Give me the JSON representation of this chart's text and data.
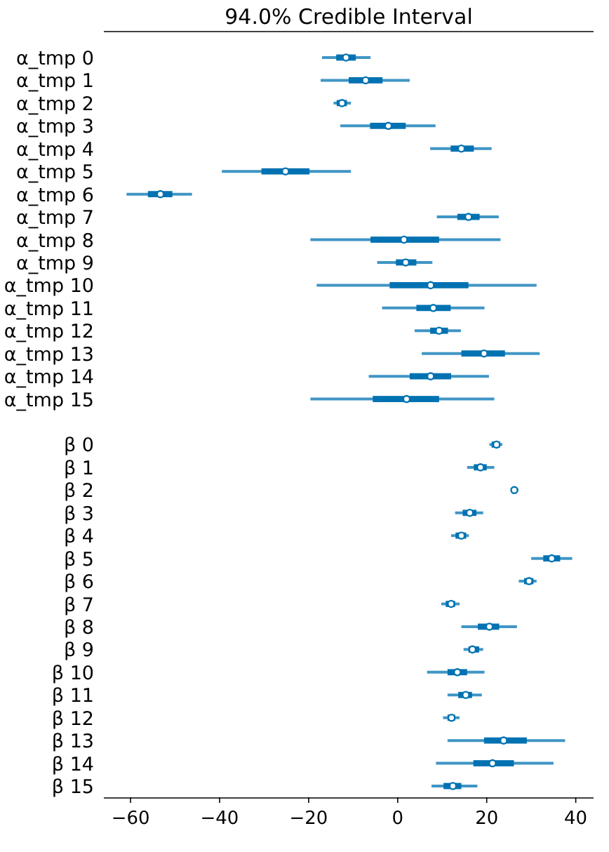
{
  "chart_data": {
    "type": "box",
    "orientation": "horizontal",
    "title": "94.0% Credible Interval",
    "marker": "circle",
    "color": "#0072b2",
    "categories": [
      "α_tmp 0",
      "α_tmp 1",
      "α_tmp 2",
      "α_tmp 3",
      "α_tmp 4",
      "α_tmp 5",
      "α_tmp 6",
      "α_tmp 7",
      "α_tmp 8",
      "α_tmp 9",
      "α_tmp 10",
      "α_tmp 11",
      "α_tmp 12",
      "α_tmp 13",
      "α_tmp 14",
      "α_tmp 15",
      null,
      "β 0",
      "β 1",
      "β 2",
      "β 3",
      "β 4",
      "β 5",
      "β 6",
      "β 7",
      "β 8",
      "β 9",
      "β 10",
      "β 11",
      "β 12",
      "β 13",
      "β 14",
      "β 15"
    ],
    "boxes": [
      {
        "low": -17.0,
        "q1": -13.8,
        "median": -11.6,
        "q3": -9.4,
        "high": -6.1
      },
      {
        "low": -17.3,
        "q1": -11.0,
        "median": -7.2,
        "q3": -3.4,
        "high": 2.7
      },
      {
        "low": -14.4,
        "q1": -13.7,
        "median": -12.5,
        "q3": -11.4,
        "high": -10.5
      },
      {
        "low": -12.9,
        "q1": -6.2,
        "median": -2.1,
        "q3": 1.8,
        "high": 8.5
      },
      {
        "low": 7.3,
        "q1": 11.9,
        "median": 14.3,
        "q3": 17.1,
        "high": 21.1
      },
      {
        "low": -39.5,
        "q1": -30.6,
        "median": -25.2,
        "q3": -19.8,
        "high": -10.5
      },
      {
        "low": -60.9,
        "q1": -56.1,
        "median": -53.3,
        "q3": -50.6,
        "high": -46.2
      },
      {
        "low": 8.8,
        "q1": 13.4,
        "median": 15.9,
        "q3": 18.4,
        "high": 22.7
      },
      {
        "low": -19.6,
        "q1": -6.1,
        "median": 1.4,
        "q3": 9.3,
        "high": 23.1
      },
      {
        "low": -4.6,
        "q1": -0.4,
        "median": 1.8,
        "q3": 4.2,
        "high": 7.8
      },
      {
        "low": -18.2,
        "q1": -1.8,
        "median": 7.4,
        "q3": 15.9,
        "high": 31.2
      },
      {
        "low": -3.5,
        "q1": 4.2,
        "median": 8.0,
        "q3": 11.9,
        "high": 19.5
      },
      {
        "low": 3.8,
        "q1": 7.3,
        "median": 9.3,
        "q3": 11.3,
        "high": 14.2
      },
      {
        "low": 5.4,
        "q1": 14.3,
        "median": 19.4,
        "q3": 24.1,
        "high": 31.9
      },
      {
        "low": -6.5,
        "q1": 2.7,
        "median": 7.4,
        "q3": 12.0,
        "high": 20.5
      },
      {
        "low": -19.6,
        "q1": -5.6,
        "median": 2.0,
        "q3": 9.3,
        "high": 21.7
      },
      null,
      {
        "low": 20.6,
        "q1": 21.1,
        "median": 22.2,
        "q3": 23.0,
        "high": 23.5
      },
      {
        "low": 15.6,
        "q1": 17.1,
        "median": 18.6,
        "q3": 20.0,
        "high": 21.7
      },
      {
        "low": 25.4,
        "q1": 25.9,
        "median": 26.2,
        "q3": 26.6,
        "high": 27.1
      },
      {
        "low": 12.9,
        "q1": 14.6,
        "median": 16.2,
        "q3": 17.7,
        "high": 19.2
      },
      {
        "low": 12.0,
        "q1": 13.0,
        "median": 14.3,
        "q3": 15.4,
        "high": 16.0
      },
      {
        "low": 30.0,
        "q1": 32.7,
        "median": 34.6,
        "q3": 36.5,
        "high": 39.2
      },
      {
        "low": 27.2,
        "q1": 28.4,
        "median": 29.5,
        "q3": 30.5,
        "high": 31.2
      },
      {
        "low": 9.8,
        "q1": 10.8,
        "median": 12.0,
        "q3": 12.9,
        "high": 13.9
      },
      {
        "low": 14.3,
        "q1": 18.0,
        "median": 20.6,
        "q3": 22.8,
        "high": 26.8
      },
      {
        "low": 14.8,
        "q1": 15.9,
        "median": 16.8,
        "q3": 18.3,
        "high": 19.2
      },
      {
        "low": 6.6,
        "q1": 11.2,
        "median": 13.4,
        "q3": 15.6,
        "high": 19.5
      },
      {
        "low": 11.2,
        "q1": 13.6,
        "median": 15.3,
        "q3": 16.7,
        "high": 18.9
      },
      {
        "low": 10.2,
        "q1": 11.2,
        "median": 12.1,
        "q3": 12.9,
        "high": 13.9
      },
      {
        "low": 11.2,
        "q1": 19.4,
        "median": 23.8,
        "q3": 29.0,
        "high": 37.6
      },
      {
        "low": 8.6,
        "q1": 17.0,
        "median": 21.3,
        "q3": 26.1,
        "high": 35.0
      },
      {
        "low": 7.6,
        "q1": 10.3,
        "median": 12.4,
        "q3": 14.3,
        "high": 17.9
      }
    ],
    "xlim": [
      -66,
      44
    ],
    "xticks": [
      -60,
      -40,
      -20,
      0,
      20,
      40
    ]
  }
}
